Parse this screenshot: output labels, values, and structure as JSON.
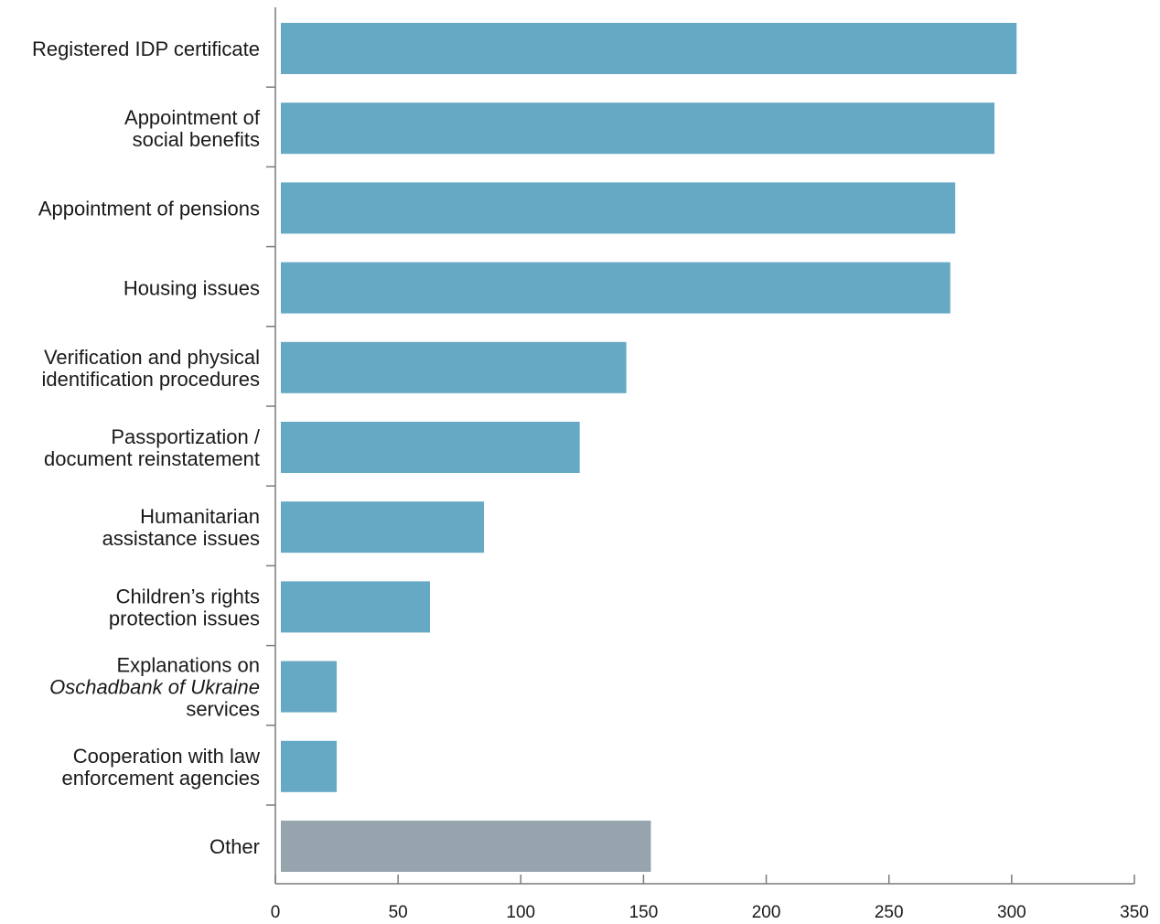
{
  "chart_data": {
    "type": "bar",
    "orientation": "horizontal",
    "categories": [
      [
        "Registered IDP certificate"
      ],
      [
        "Appointment of",
        "social benefits"
      ],
      [
        "Appointment of pensions"
      ],
      [
        "Housing issues"
      ],
      [
        "Verification and physical",
        "identification procedures"
      ],
      [
        "Passportization /",
        "document reinstatement"
      ],
      [
        "Humanitarian",
        "assistance issues"
      ],
      [
        "Children’s rights",
        "protection issues"
      ],
      [
        "Explanations on",
        "Oschadbank of Ukraine",
        "services"
      ],
      [
        "Cooperation with law",
        "enforcement agencies"
      ],
      [
        "Other"
      ]
    ],
    "italic_lines": [
      [],
      [],
      [],
      [],
      [],
      [],
      [],
      [],
      [
        1
      ],
      [],
      []
    ],
    "values": [
      302,
      293,
      277,
      275,
      143,
      124,
      85,
      63,
      25,
      25,
      153
    ],
    "bar_colors": [
      "#66a9c4",
      "#66a9c4",
      "#66a9c4",
      "#66a9c4",
      "#66a9c4",
      "#66a9c4",
      "#66a9c4",
      "#66a9c4",
      "#66a9c4",
      "#66a9c4",
      "#96a5ad"
    ],
    "xlim": [
      0,
      350
    ],
    "xticks": [
      0,
      50,
      100,
      150,
      200,
      250,
      300,
      350
    ],
    "xlabel": "",
    "ylabel": "",
    "title": "",
    "grid": false,
    "legend": "none"
  }
}
